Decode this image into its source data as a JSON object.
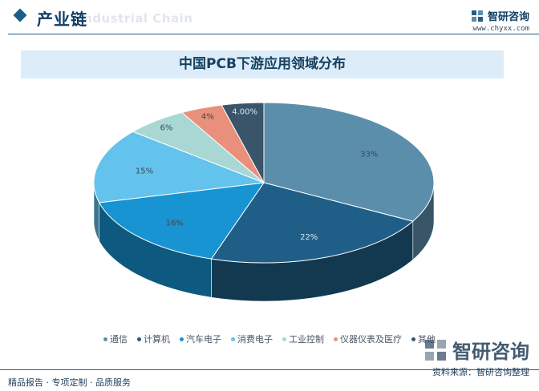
{
  "header": {
    "title": "产业链",
    "title_en": "Industrial Chain",
    "brand_name": "智研咨询",
    "brand_url": "www.chyxx.com",
    "logo_icon": "zhiyan-logo-icon"
  },
  "chart_data": {
    "type": "pie",
    "title": "中国PCB下游应用领域分布",
    "style": "3d-exploded-none",
    "legend_position": "bottom",
    "slices": [
      {
        "label": "通信",
        "value": 33,
        "display": "33%",
        "color": "#5b8eab"
      },
      {
        "label": "计算机",
        "value": 22,
        "display": "22%",
        "color": "#1f5f87"
      },
      {
        "label": "汽车电子",
        "value": 16,
        "display": "16%",
        "color": "#1894d3"
      },
      {
        "label": "消费电子",
        "value": 15,
        "display": "15%",
        "color": "#63c3ec"
      },
      {
        "label": "工业控制",
        "value": 6,
        "display": "6%",
        "color": "#a9d8d4"
      },
      {
        "label": "仪器仪表及医疗",
        "value": 4,
        "display": "4%",
        "color": "#e9907c"
      },
      {
        "label": "其他",
        "value": 4,
        "display": "4.00%",
        "color": "#3a5569"
      }
    ]
  },
  "footer": {
    "left_text": "精品报告 · 专项定制 · 品质服务",
    "source_text": "资料来源：智研咨询整理",
    "watermark_text": "智研咨询"
  }
}
